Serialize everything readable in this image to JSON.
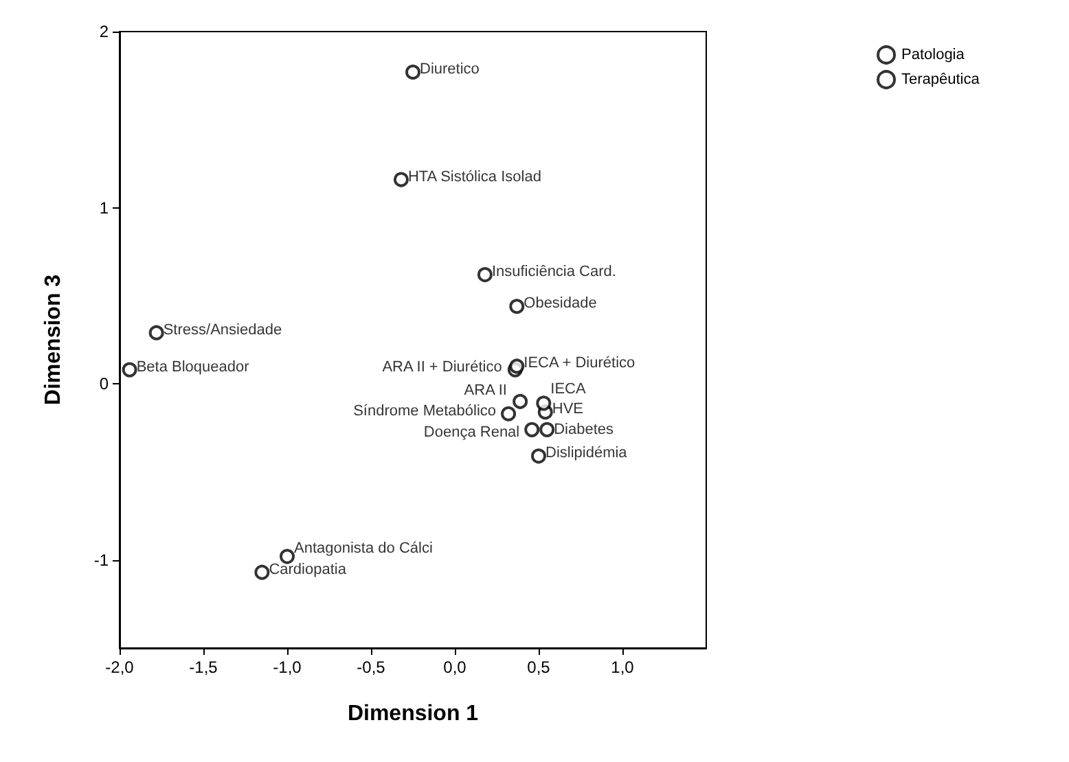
{
  "chart_data": {
    "type": "scatter",
    "xlabel": "Dimension 1",
    "ylabel": "Dimension 3",
    "xlim": [
      -2,
      1.5
    ],
    "ylim": [
      -1.5,
      2
    ],
    "xticks": [
      {
        "value": -2,
        "label": "-2,0"
      },
      {
        "value": -1.5,
        "label": "-1,5"
      },
      {
        "value": -1,
        "label": "-1,0"
      },
      {
        "value": -0.5,
        "label": "-0,5"
      },
      {
        "value": 0,
        "label": "0,0"
      },
      {
        "value": 0.5,
        "label": "0,5"
      },
      {
        "value": 1,
        "label": "1,0"
      }
    ],
    "yticks": [
      -1,
      0,
      1,
      2
    ],
    "marker": "circle",
    "grid": false,
    "legend": "top right",
    "series": [
      {
        "name": "Patologia",
        "color": "#000000",
        "x": [
          -0.32,
          0.18,
          -1.78,
          0.37,
          0.55,
          0.54,
          0.32,
          0.46,
          0.5,
          -1.15
        ],
        "values": [
          1.16,
          0.62,
          0.29,
          0.44,
          -0.26,
          -0.16,
          -0.17,
          -0.26,
          -0.41,
          -1.07
        ],
        "value_labels": [
          "HTA Sistólica Isolad",
          "Insuficiência Card.",
          "Stress/Ansiedade",
          "Obesidade",
          "Diabetes",
          "HVE",
          "Síndrome Metabólico",
          "Doença Renal",
          "Dislipidémia",
          "Cardiopatia"
        ]
      },
      {
        "name": "Terapêutica",
        "color": "#000000",
        "x": [
          -0.25,
          -1.94,
          0.36,
          0.37,
          0.39,
          0.53,
          -1.0
        ],
        "values": [
          1.77,
          0.08,
          0.08,
          0.1,
          -0.1,
          -0.11,
          -0.98
        ],
        "value_labels": [
          "Diuretico",
          "Beta Bloqueador",
          "ARA II + Diurético",
          "IECA + Diurético",
          "ARA II",
          "IECA",
          "Antagonista do Cálci"
        ]
      }
    ]
  }
}
